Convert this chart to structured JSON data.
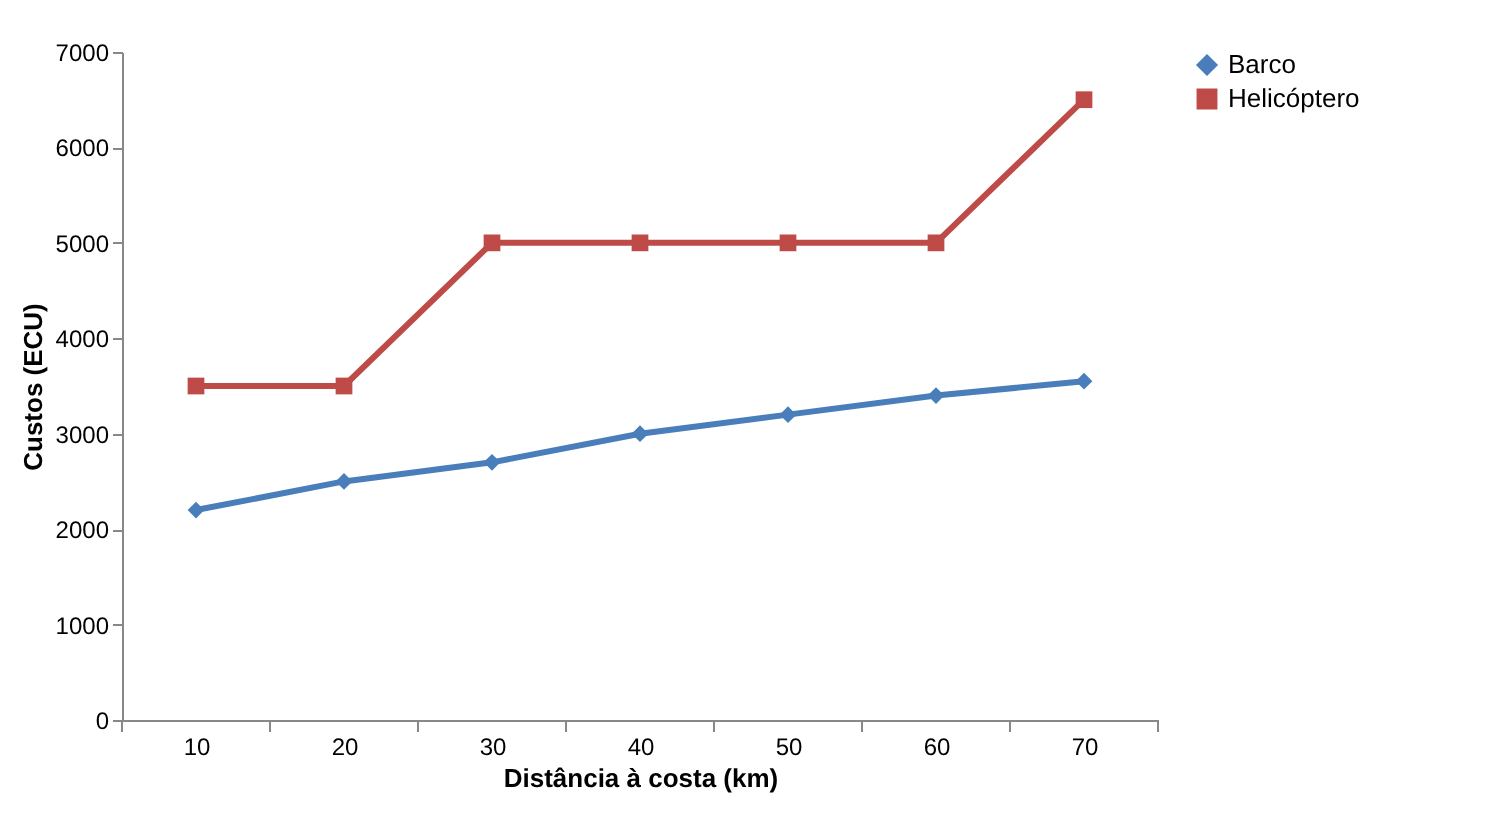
{
  "chart_data": {
    "type": "line",
    "xlabel": "Distância à costa (km)",
    "ylabel": "Custos (ECU)",
    "categories": [
      "10",
      "20",
      "30",
      "40",
      "50",
      "60",
      "70"
    ],
    "series": [
      {
        "name": "Barco",
        "color": "#4a7ebb",
        "marker": "diamond",
        "values": [
          2200,
          2500,
          2700,
          3000,
          3200,
          3400,
          3550
        ]
      },
      {
        "name": "Helicóptero",
        "color": "#be4b48",
        "marker": "square",
        "values": [
          3500,
          3500,
          5000,
          5000,
          5000,
          5000,
          6500
        ]
      }
    ],
    "ylim": [
      0,
      7000
    ],
    "yticks": [
      0,
      1000,
      2000,
      3000,
      4000,
      5000,
      6000,
      7000
    ],
    "grid": false,
    "legend": "right",
    "line_style": "solid"
  }
}
